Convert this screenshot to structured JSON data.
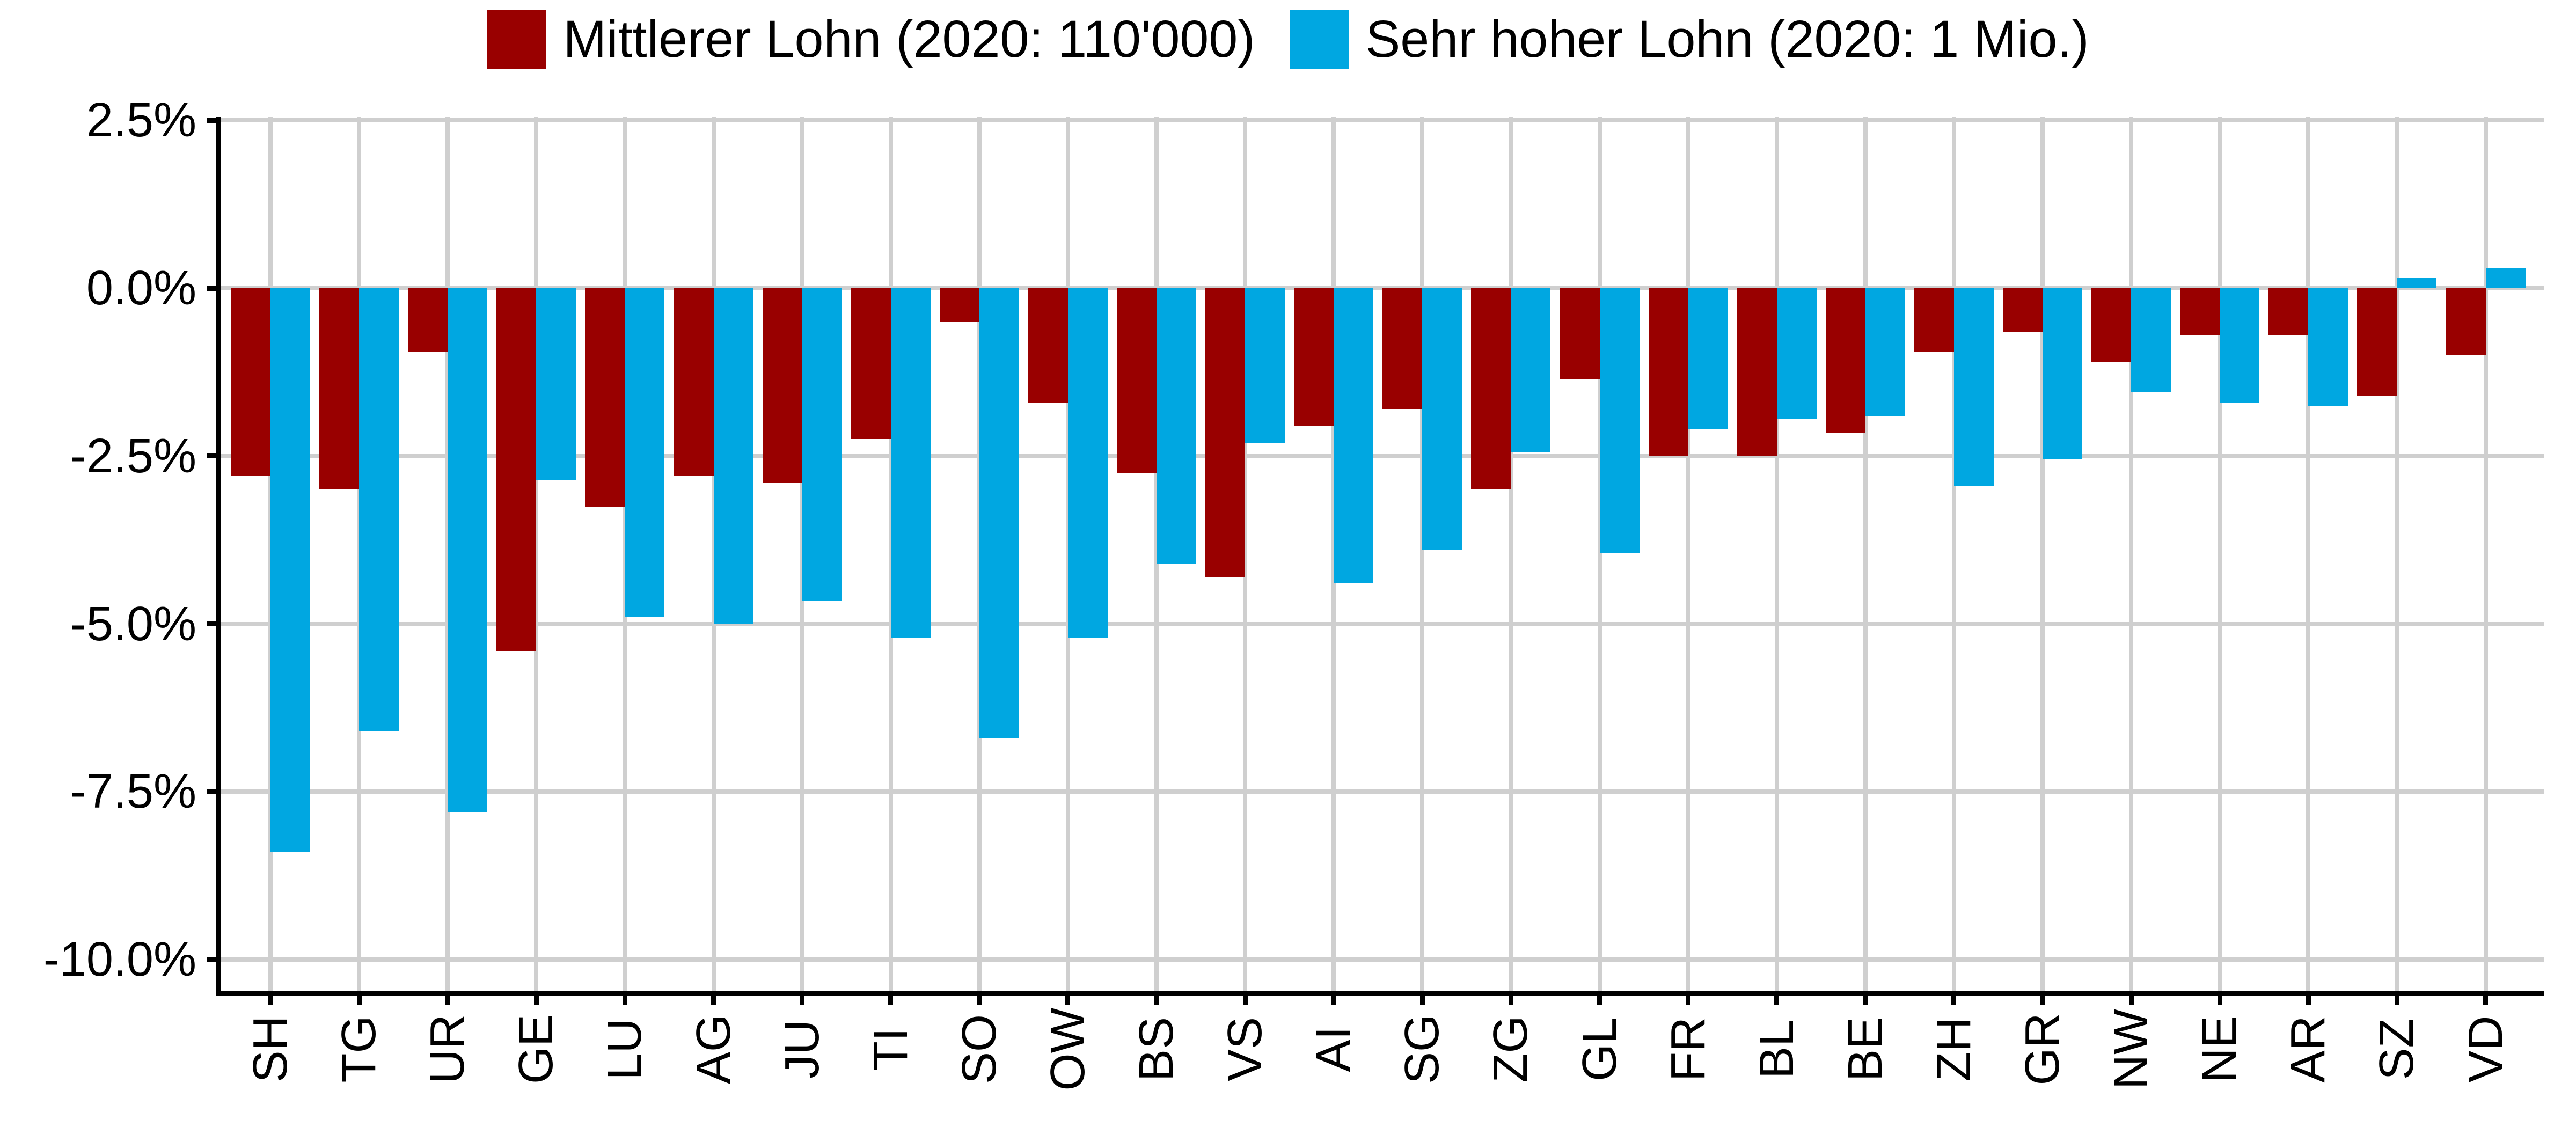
{
  "chart_data": {
    "type": "bar",
    "orientation": "vertical-grouped",
    "title": "",
    "xlabel": "",
    "ylabel": "",
    "unit": "%",
    "categories": [
      "SH",
      "TG",
      "UR",
      "GE",
      "LU",
      "AG",
      "JU",
      "TI",
      "SO",
      "OW",
      "BS",
      "VS",
      "AI",
      "SG",
      "ZG",
      "GL",
      "FR",
      "BL",
      "BE",
      "ZH",
      "GR",
      "NW",
      "NE",
      "AR",
      "SZ",
      "VD"
    ],
    "series": [
      {
        "name": "Mittlerer Lohn (2020: 110'000)",
        "color": "#990000",
        "values": [
          -2.8,
          -3.0,
          -0.95,
          -5.4,
          -3.25,
          -2.8,
          -2.9,
          -2.25,
          -0.5,
          -1.7,
          -2.75,
          -4.3,
          -2.05,
          -1.8,
          -3.0,
          -1.35,
          -2.5,
          -2.5,
          -2.15,
          -0.95,
          -0.65,
          -1.1,
          -0.7,
          -0.7,
          -1.6,
          -1.0
        ]
      },
      {
        "name": "Sehr hoher Lohn (2020: 1 Mio.)",
        "color": "#00A7E1",
        "values": [
          -8.4,
          -6.6,
          -7.8,
          -2.85,
          -4.9,
          -5.0,
          -4.65,
          -5.2,
          -6.7,
          -5.2,
          -4.1,
          -2.3,
          -4.4,
          -3.9,
          -2.45,
          -3.95,
          -2.1,
          -1.95,
          -1.9,
          -2.95,
          -2.55,
          -1.55,
          -1.7,
          -1.75,
          0.15,
          0.3
        ]
      }
    ],
    "y_ticks": [
      {
        "value": 2.5,
        "label": "2.5%"
      },
      {
        "value": 0,
        "label": "0.0%"
      },
      {
        "value": -2.5,
        "label": "-2.5%"
      },
      {
        "value": -5,
        "label": "-5.0%"
      },
      {
        "value": -7.5,
        "label": "-7.5%"
      },
      {
        "value": -10,
        "label": "-10.0%"
      }
    ],
    "ylim": [
      -10.5,
      2.55
    ],
    "grid": true,
    "legend_position": "top-center",
    "colors": {
      "axis": "#000000",
      "grid": "#CFCFCF",
      "text": "#000000",
      "background": "#FFFFFF"
    }
  }
}
